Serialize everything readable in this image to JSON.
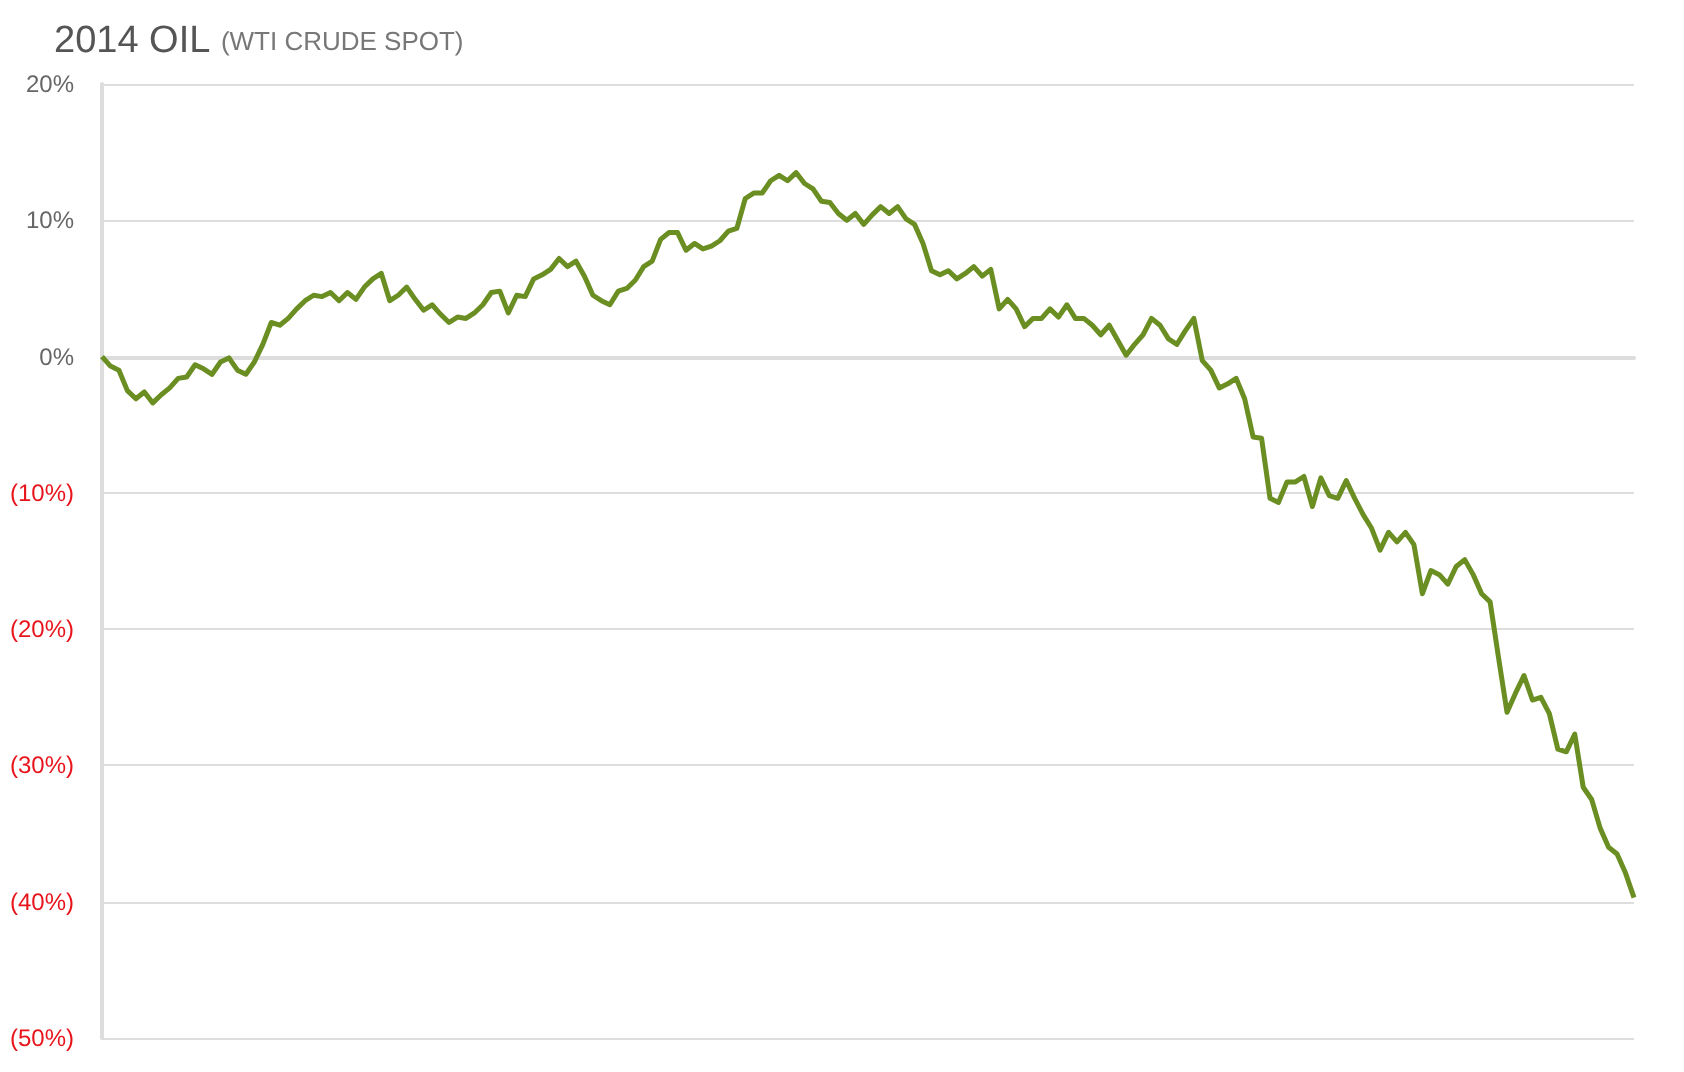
{
  "chart_data": {
    "type": "line",
    "title": "2014 OIL",
    "subtitle": "(WTI CRUDE SPOT)",
    "categories": [
      null,
      null,
      null,
      null,
      null,
      null,
      null,
      null,
      null,
      null,
      null,
      null,
      null,
      null,
      null,
      null,
      null,
      null,
      null,
      null,
      null,
      null,
      null,
      null,
      null,
      null,
      null,
      null,
      null,
      null,
      null,
      null,
      null,
      null,
      null,
      null,
      null,
      null,
      null,
      null,
      null,
      null,
      null,
      null,
      null,
      null,
      null,
      null,
      null,
      null,
      null,
      null,
      null,
      null,
      null,
      null,
      null,
      null,
      null,
      null,
      null,
      null,
      null,
      null,
      null,
      null,
      null,
      null,
      null,
      null,
      null,
      null,
      null,
      null,
      null,
      null,
      null,
      null,
      null,
      null,
      null,
      null,
      null,
      null,
      null,
      null,
      null,
      null,
      null,
      null,
      null,
      null,
      null,
      null,
      null,
      null,
      null,
      null,
      null,
      null,
      null,
      null,
      null,
      null,
      null,
      null,
      null,
      null,
      null,
      null,
      null,
      null,
      null,
      null,
      null,
      null,
      null,
      null,
      null,
      null,
      null,
      null,
      null,
      null,
      null,
      null,
      null,
      null,
      null,
      null,
      null,
      null,
      null,
      null,
      null,
      null,
      null,
      null,
      null,
      null,
      null,
      null,
      null,
      null,
      null,
      null,
      null,
      null,
      null,
      null,
      null,
      null,
      null,
      null,
      null,
      null,
      null,
      null,
      null,
      null,
      null,
      null,
      null,
      null,
      null,
      null,
      null,
      null,
      null,
      null,
      null,
      null,
      null,
      null,
      null,
      null,
      null,
      null,
      null,
      null,
      null,
      null
    ],
    "series": [
      {
        "color": "#6b8e23",
        "values": [
          0,
          -0.7,
          -1.0,
          -2.5,
          -3.1,
          -2.6,
          -3.4,
          -2.8,
          -2.3,
          -1.6,
          -1.5,
          -0.6,
          -0.9,
          -1.3,
          -0.4,
          -0.1,
          -1.0,
          -1.3,
          -0.4,
          0.9,
          2.5,
          2.3,
          2.8,
          3.5,
          4.1,
          4.5,
          4.4,
          4.7,
          4.1,
          4.7,
          4.2,
          5.1,
          5.7,
          6.1,
          4.1,
          4.5,
          5.1,
          4.2,
          3.4,
          3.8,
          3.1,
          2.5,
          2.9,
          2.8,
          3.2,
          3.8,
          4.7,
          4.8,
          3.2,
          4.5,
          4.4,
          5.7,
          6.0,
          6.4,
          7.2,
          6.6,
          7.0,
          5.9,
          4.5,
          4.1,
          3.8,
          4.8,
          5.0,
          5.6,
          6.6,
          7.0,
          8.6,
          9.1,
          9.1,
          7.8,
          8.3,
          7.9,
          8.1,
          8.5,
          9.2,
          9.4,
          11.6,
          12.0,
          12.0,
          12.9,
          13.3,
          12.9,
          13.5,
          12.7,
          12.3,
          11.4,
          11.3,
          10.5,
          10.0,
          10.5,
          9.7,
          10.4,
          11.0,
          10.5,
          11.0,
          10.1,
          9.7,
          8.3,
          6.3,
          6.0,
          6.3,
          5.7,
          6.1,
          6.6,
          5.9,
          6.4,
          3.5,
          4.2,
          3.5,
          2.2,
          2.8,
          2.8,
          3.5,
          2.9,
          3.8,
          2.8,
          2.8,
          2.3,
          1.6,
          2.3,
          1.2,
          0.1,
          0.9,
          1.6,
          2.8,
          2.3,
          1.3,
          0.9,
          1.9,
          2.8,
          -0.3,
          -1.0,
          -2.3,
          -2.0,
          -1.6,
          -3.1,
          -5.9,
          -6.0,
          -10.4,
          -10.7,
          -9.2,
          -9.2,
          -8.8,
          -11.0,
          -8.9,
          -10.2,
          -10.4,
          -9.1,
          -10.4,
          -11.6,
          -12.6,
          -14.2,
          -12.9,
          -13.6,
          -12.9,
          -13.8,
          -17.4,
          -15.7,
          -16.0,
          -16.7,
          -15.4,
          -14.9,
          -16.0,
          -17.4,
          -18.0,
          -22.1,
          -26.1,
          -24.7,
          -23.4,
          -25.2,
          -25.0,
          -26.2,
          -28.8,
          -29.0,
          -27.7,
          -31.6,
          -32.5,
          -34.6,
          -36.0,
          -36.5,
          -37.9,
          -39.7
        ]
      }
    ],
    "ylim": [
      -50,
      20
    ],
    "yticks": [
      {
        "value": -50,
        "label": "(50%)"
      },
      {
        "value": -40,
        "label": "(40%)"
      },
      {
        "value": -30,
        "label": "(30%)"
      },
      {
        "value": -20,
        "label": "(20%)"
      },
      {
        "value": -10,
        "label": "(10%)"
      },
      {
        "value": 0,
        "label": "0%"
      },
      {
        "value": 10,
        "label": "10%"
      },
      {
        "value": 20,
        "label": "20%"
      }
    ],
    "tick_labels": "y",
    "grid": "y",
    "marker": "none",
    "line_style": "solid"
  }
}
